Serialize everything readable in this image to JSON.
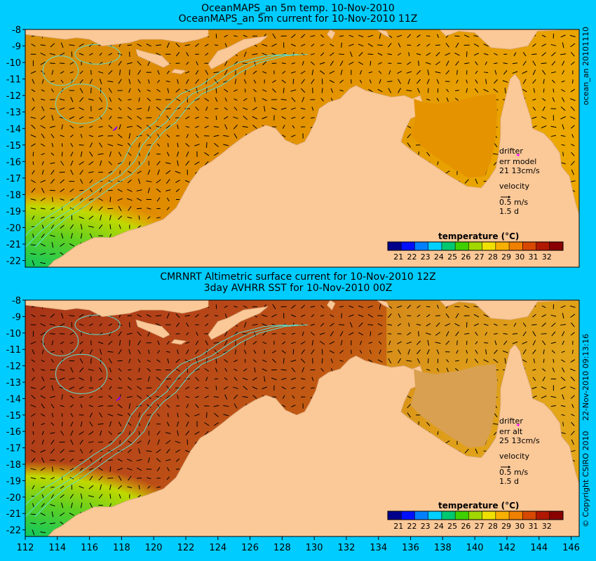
{
  "panels": [
    {
      "title_line1": "OceanMAPS_an 5m temp. 10-Nov-2010",
      "title_line2": "OceanMAPS_an 5m current for 10-Nov-2010 11Z",
      "side_label": "ocean_an 20101110",
      "legend": {
        "drifter_label": "drifter",
        "err_label": "err model",
        "err_value": "21 13cm/s",
        "velocity_label": "velocity",
        "velocity_value": "0.5 m/s",
        "velocity_days": "1.5 d"
      },
      "colorbar_title": "temperature (°C)",
      "drifter_lon": 117.6,
      "drifter_lat": -14.0
    },
    {
      "title_line1": "CMRNRT Altimetric surface current for 10-Nov-2010 12Z",
      "title_line2": "3day AVHRR SST for 10-Nov-2010 00Z",
      "side_label": "22-Nov-2010 09:13:16",
      "side_label2": "© Copyright CSIRO 2010",
      "legend": {
        "drifter_label": "drifter",
        "err_label": "err alt",
        "err_value": "25 13cm/s",
        "velocity_label": "velocity",
        "velocity_value": "0.5 m/s",
        "velocity_days": "1.5 d"
      },
      "colorbar_title": "temperature (°C)",
      "drifter_lon": 117.8,
      "drifter_lat": -14.0
    }
  ],
  "lat_ticks": [
    "-8",
    "-9",
    "-10",
    "-11",
    "-12",
    "-13",
    "-14",
    "-15",
    "-16",
    "-17",
    "-18",
    "-19",
    "-20",
    "-21",
    "-22"
  ],
  "lon_ticks": [
    "112",
    "114",
    "116",
    "118",
    "120",
    "122",
    "124",
    "126",
    "128",
    "130",
    "132",
    "134",
    "136",
    "138",
    "140",
    "142",
    "144",
    "146"
  ],
  "colorbar_ticks": [
    "21",
    "22",
    "23",
    "24",
    "25",
    "26",
    "27",
    "28",
    "29",
    "30",
    "31",
    "32"
  ],
  "colors": {
    "background": "#00ccff",
    "land": "#fbc898",
    "ocean_warm": "#e8a000",
    "ocean_hot": "#c04000",
    "contour": "#5ce0d0",
    "drifter": "#ff00ff"
  },
  "colorbar_colors": [
    "#00008b",
    "#0010ff",
    "#0080ff",
    "#00d0ff",
    "#00c870",
    "#40d000",
    "#a0d800",
    "#f0e000",
    "#f8b000",
    "#f08000",
    "#d84800",
    "#b01800",
    "#8a0000"
  ]
}
